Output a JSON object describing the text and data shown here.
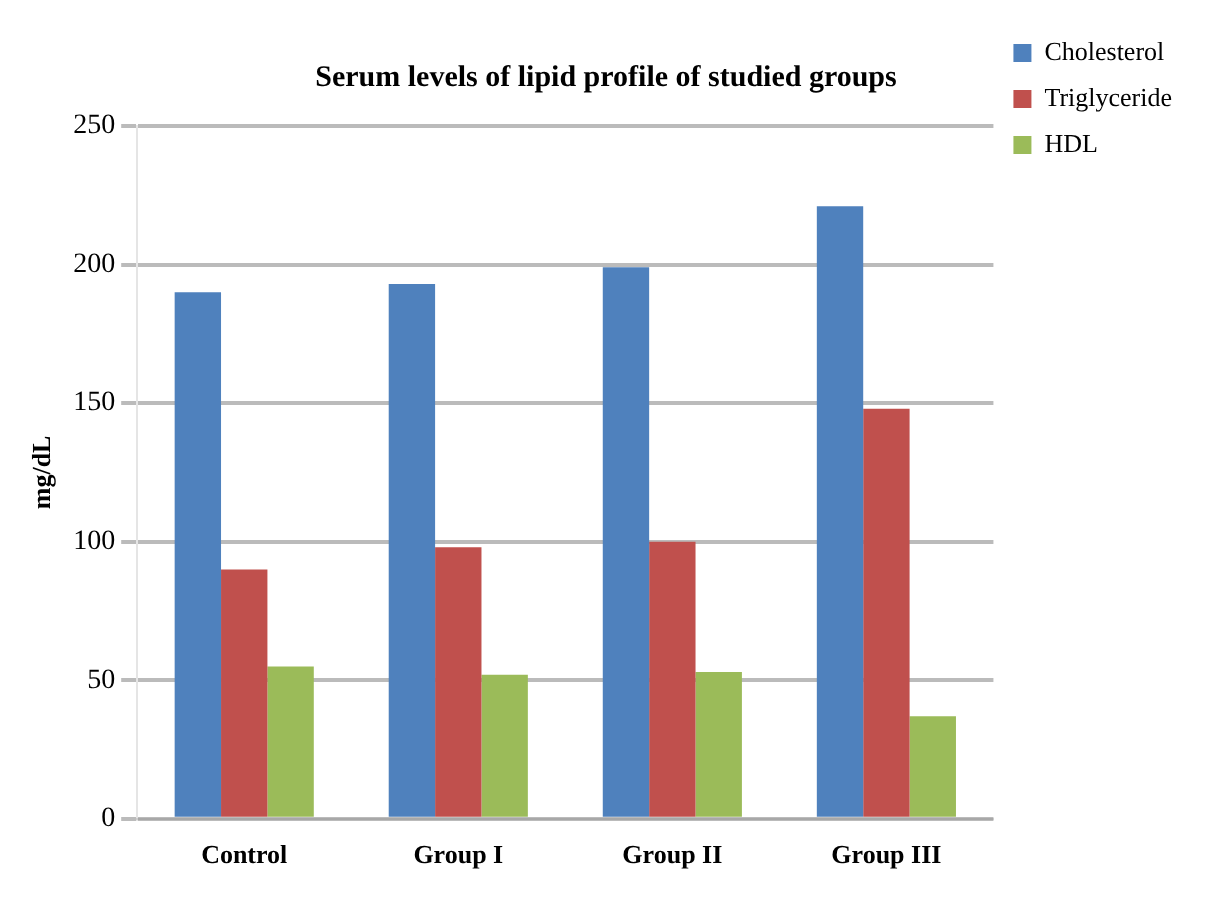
{
  "chart_data": {
    "type": "bar",
    "title": "Serum levels of lipid profile of studied groups",
    "ylabel": "mg/dL",
    "categories": [
      "Control",
      "Group I",
      "Group II",
      "Group III"
    ],
    "series": [
      {
        "name": "Cholesterol",
        "color": "#4f81bd",
        "values": [
          190,
          193,
          199,
          221
        ]
      },
      {
        "name": "Triglyceride",
        "color": "#c0504d",
        "values": [
          90,
          98,
          100,
          148
        ]
      },
      {
        "name": "HDL",
        "color": "#9bbb59",
        "values": [
          55,
          52,
          53,
          37
        ]
      }
    ],
    "ylim": [
      0,
      250
    ],
    "yticks": [
      0,
      50,
      100,
      150,
      200,
      250
    ],
    "grid": "y",
    "legend": "top right"
  }
}
